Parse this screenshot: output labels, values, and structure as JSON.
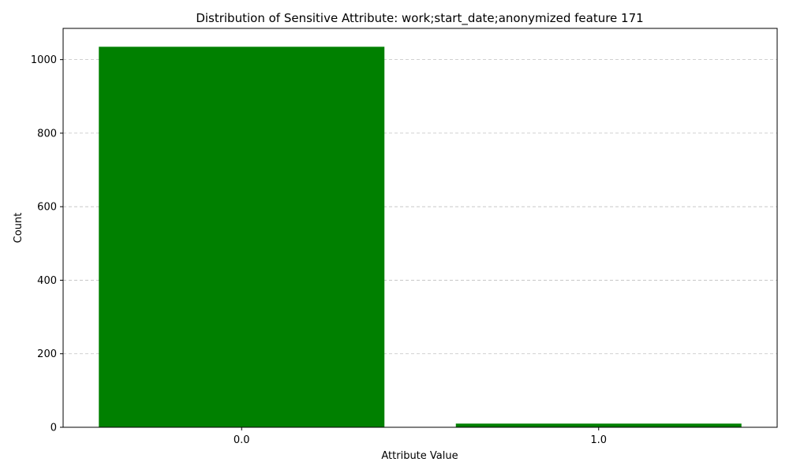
{
  "chart_data": {
    "type": "bar",
    "title": "Distribution of Sensitive Attribute: work;start_date;anonymized feature 171",
    "xlabel": "Attribute Value",
    "ylabel": "Count",
    "categories": [
      "0.0",
      "1.0"
    ],
    "values": [
      1035,
      10
    ],
    "ylim": [
      0,
      1085
    ],
    "yticks": [
      0,
      200,
      400,
      600,
      800,
      1000
    ],
    "grid": "y-dashed",
    "bar_color": "#008000",
    "grid_color": "#c0c0c0"
  }
}
